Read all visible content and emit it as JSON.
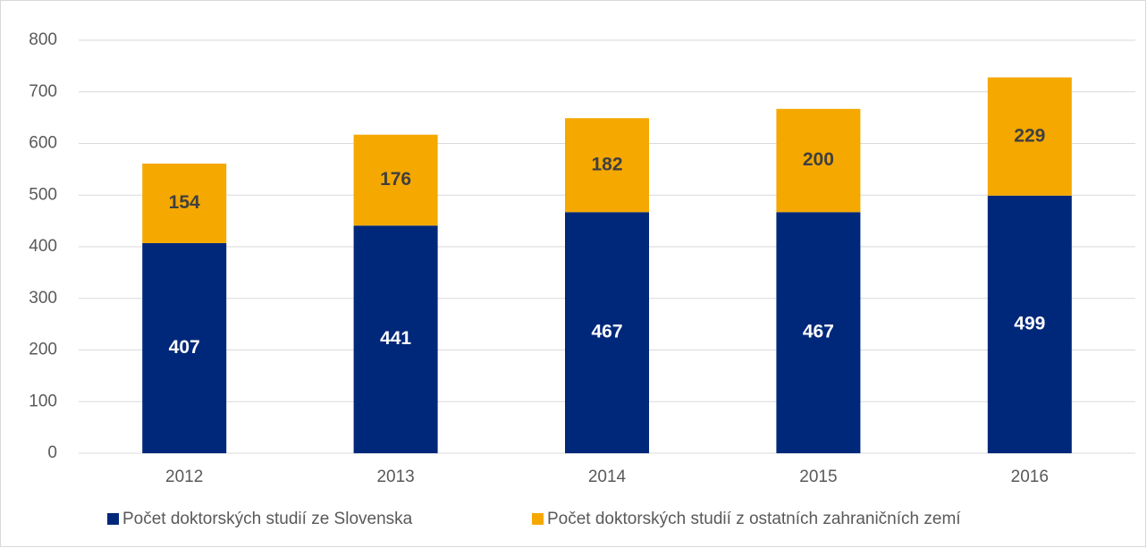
{
  "chart_data": {
    "type": "stacked_bar",
    "categories": [
      "2012",
      "2013",
      "2014",
      "2015",
      "2016"
    ],
    "series": [
      {
        "name": "Počet doktorských studií ze Slovenska",
        "color": "#00287a",
        "values": [
          407,
          441,
          467,
          467,
          499
        ]
      },
      {
        "name": "Počet doktorských studií z ostatních zahraničních zemí",
        "color": "#f5a800",
        "values": [
          154,
          176,
          182,
          200,
          229
        ]
      }
    ],
    "ylim": [
      0,
      800
    ],
    "yticks": [
      0,
      100,
      200,
      300,
      400,
      500,
      600,
      700,
      800
    ],
    "grid": true,
    "legend": "bottom"
  }
}
